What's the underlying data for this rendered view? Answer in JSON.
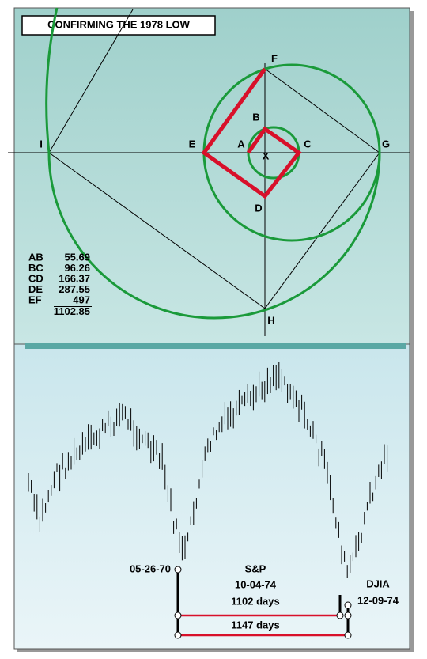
{
  "header": {
    "title": "CONFIRMING THE 1978 LOW"
  },
  "points": {
    "A": "A",
    "B": "B",
    "C": "C",
    "D": "D",
    "E": "E",
    "F": "F",
    "G": "G",
    "H": "H",
    "I": "I",
    "X": "X"
  },
  "measures": [
    {
      "label": "AB",
      "value": 55.69
    },
    {
      "label": "BC",
      "value": 96.26
    },
    {
      "label": "CD",
      "value": 166.37
    },
    {
      "label": "DE",
      "value": 287.55
    },
    {
      "label": "EF",
      "value": 497
    }
  ],
  "total": 1102.85,
  "annotations": {
    "start_date": "05-26-70",
    "sp_name": "S&P",
    "sp_date": "10-04-74",
    "sp_days": "1102 days",
    "djia_name": "DJIA",
    "djia_date": "12-09-74",
    "djia_days": "1147 days"
  }
}
